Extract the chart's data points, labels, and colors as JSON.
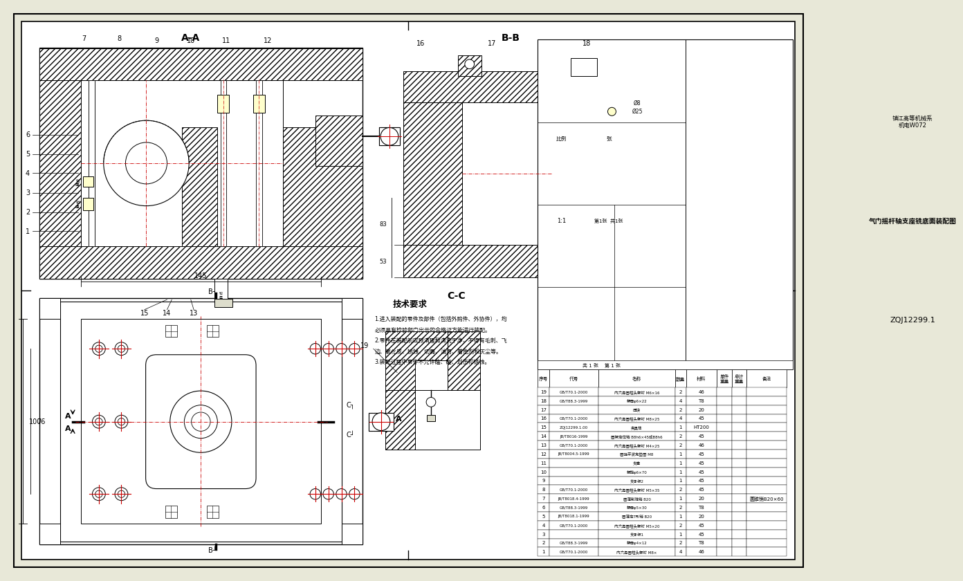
{
  "bg": "#e8e8d8",
  "white": "#ffffff",
  "black": "#000000",
  "red": "#cc0000",
  "hatch_fc": "#ffffff",
  "gray_light": "#ddddcc",
  "title_text": "气门摇杆轴支座铣底面装配图",
  "drawing_number": "ZQJ12299.1",
  "company_line1": "镇江高等机械系",
  "company_line2": "机电W072",
  "scale": "1:1",
  "tech_req_title": "技术要求",
  "tech_req_lines": [
    "1.进入装配的零件及部件（包括外购件、外协件），均",
    "必须具有检验部门出示的合格证方能进行装配。",
    "2.零件在装配前应预清理和清洗干净，不得有毛刺、飞",
    "边、氧化皮、锈蚀、切屑、油污、着色剂和灰尘等。",
    "3.装配过程中零件不允许磕、碰、划伤和锈蚀。"
  ],
  "bom_rows": [
    [
      "19",
      "GB/T70.1-2000",
      "内六角圆柱头螺钉 M6×16",
      "2",
      "46",
      "",
      "",
      ""
    ],
    [
      "18",
      "GB/T88.3-1999",
      "螺母φ6×22",
      "4",
      "T8",
      "",
      "",
      ""
    ],
    [
      "17",
      "",
      "压块",
      "2",
      "20",
      "",
      "",
      ""
    ],
    [
      "16",
      "GB/T70.1-2000",
      "内六角圆柱头螺钉 M8×25",
      "4",
      "45",
      "",
      "",
      ""
    ],
    [
      "15",
      "ZQJ12299.1.00",
      "夹具体",
      "1",
      "HT200",
      "",
      "",
      ""
    ],
    [
      "14",
      "JB/T8016-1999",
      "圆螺定位销 B8h6×45成B8h6",
      "2",
      "45",
      "",
      "",
      ""
    ],
    [
      "13",
      "GB/T70.1-2000",
      "内六角圆柱头螺钉 M4×25",
      "2",
      "46",
      "",
      "",
      ""
    ],
    [
      "12",
      "JB/T8004.5-1999",
      "圆弹平波克垫圈 M8",
      "1",
      "45",
      "",
      "",
      ""
    ],
    [
      "11",
      "",
      "支座",
      "1",
      "45",
      "",
      "",
      ""
    ],
    [
      "10",
      "",
      "螺旋φ6×70",
      "1",
      "45",
      "",
      "",
      ""
    ],
    [
      "9",
      "",
      "支承板2",
      "1",
      "45",
      "",
      "",
      ""
    ],
    [
      "8",
      "GB/T70.1-2000",
      "内六角圆柱头螺钉 M5×35",
      "2",
      "45",
      "",
      "",
      ""
    ],
    [
      "7",
      "JB/T8018.4-1999",
      "圆薄削锥销 B20",
      "1",
      "20",
      "",
      "",
      "圆锥销B20×60"
    ],
    [
      "6",
      "GB/T88.3-1999",
      "螺母φ5×30",
      "2",
      "T8",
      "",
      "",
      ""
    ],
    [
      "5",
      "JB/T8018.1-1999",
      "圆薄定T形销 B20",
      "1",
      "20",
      "",
      "",
      ""
    ],
    [
      "4",
      "GB/T70.1-2000",
      "内六角圆柱头螺钉 M5×20",
      "2",
      "45",
      "",
      "",
      ""
    ],
    [
      "3",
      "",
      "支承板1",
      "1",
      "45",
      "",
      "",
      ""
    ],
    [
      "2",
      "GB/T88.3-1999",
      "螺母φ4×12",
      "2",
      "T8",
      "",
      "",
      ""
    ],
    [
      "1",
      "GB/T70.1-2000",
      "内六角圆柱头螺钉 M8×",
      "4",
      "46",
      "",
      "",
      ""
    ]
  ],
  "bom_headers": [
    "序号",
    "代号",
    "名称",
    "数量",
    "材料",
    "单件\n重量",
    "总计\n重量",
    "备注"
  ]
}
